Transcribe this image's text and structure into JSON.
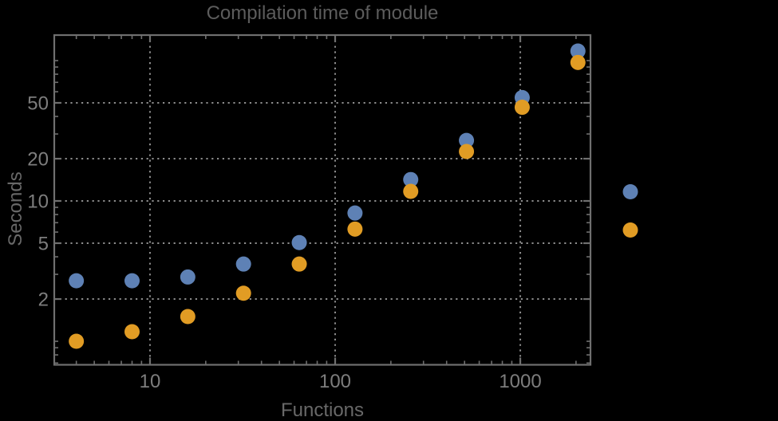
{
  "chart_data": {
    "type": "scatter",
    "title": "Compilation time of module",
    "xlabel": "Functions",
    "ylabel": "Seconds",
    "x_scale": "log",
    "y_scale": "log",
    "xlim": [
      3.04,
      2394
    ],
    "ylim": [
      0.68,
      152
    ],
    "x_ticks": {
      "major": [
        10,
        100,
        1000
      ],
      "labels": [
        "10",
        "100",
        "1000"
      ]
    },
    "y_ticks": {
      "major": [
        2,
        5,
        10,
        20,
        50
      ],
      "labels": [
        "2",
        "5",
        "10",
        "20",
        "50"
      ]
    },
    "grid": {
      "x_values": [
        10,
        100,
        1000
      ],
      "y_values": [
        2,
        5,
        10,
        20,
        50
      ],
      "style": "dotted"
    },
    "x": [
      4,
      8,
      16,
      32,
      64,
      128,
      256,
      512,
      1024,
      2048
    ],
    "series": [
      {
        "name": "series-blue",
        "color": "#5E81B5",
        "values": [
          2.7,
          2.7,
          2.87,
          3.55,
          5.05,
          8.2,
          14.2,
          27,
          54.5,
          117
        ]
      },
      {
        "name": "series-orange",
        "color": "#E19C24",
        "values": [
          1.0,
          1.17,
          1.5,
          2.2,
          3.55,
          6.3,
          11.7,
          22.5,
          46.5,
          97
        ]
      }
    ],
    "legend": {
      "position": "right-of-plot",
      "labels_visible": false,
      "marker_colors": [
        "#5E81B5",
        "#E19C24"
      ]
    },
    "style": {
      "background": "#000000",
      "frame_color": "#6f6f6f",
      "grid_color": "#8c8c8c",
      "tick_label_color": "#7d7d7d",
      "title_color": "#5c5c5c",
      "axis_label_color": "#686868"
    }
  }
}
